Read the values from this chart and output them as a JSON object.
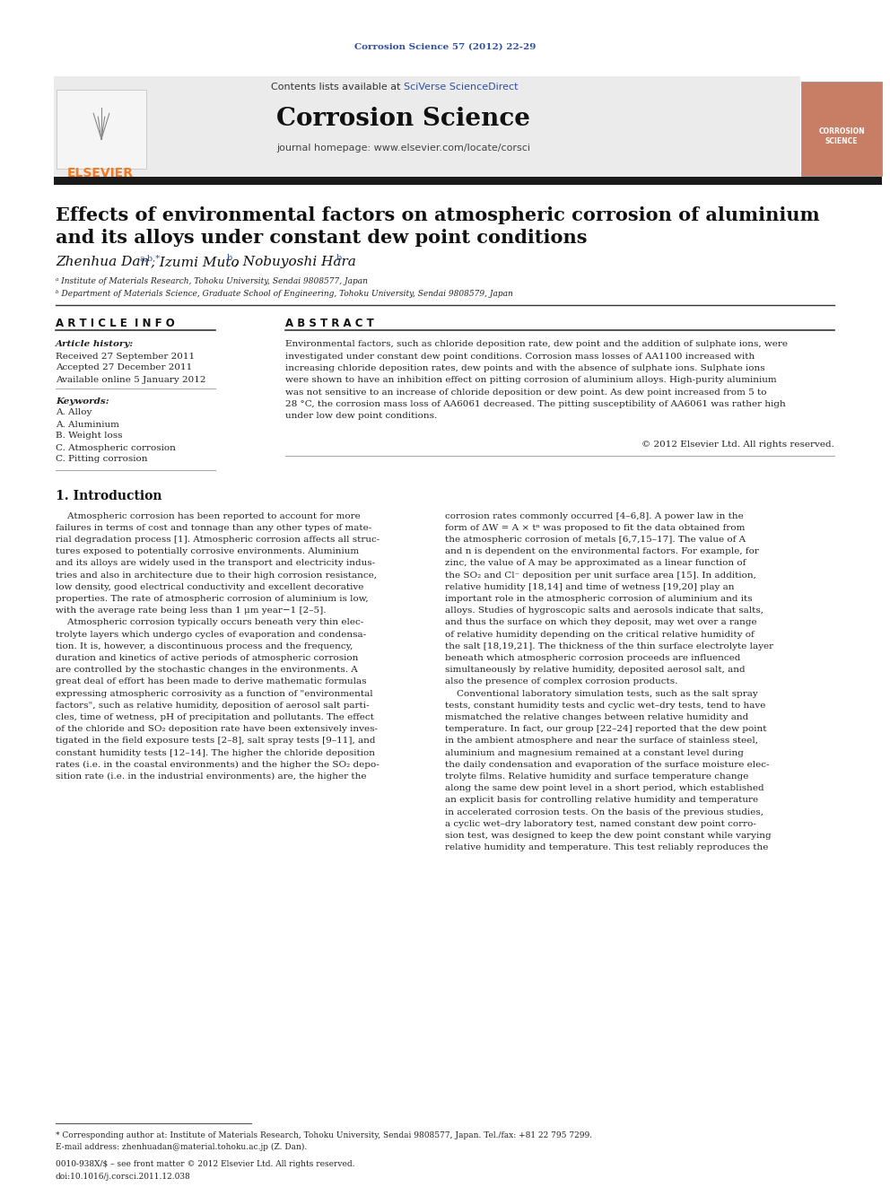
{
  "journal_ref": "Corrosion Science 57 (2012) 22-29",
  "header_text_1": "Contents lists available at ",
  "header_sciverse": "SciVerse ScienceDirect",
  "journal_name": "Corrosion Science",
  "journal_homepage": "journal homepage: www.elsevier.com/locate/corsci",
  "title_line1": "Effects of environmental factors on atmospheric corrosion of aluminium",
  "title_line2": "and its alloys under constant dew point conditions",
  "authors": "Zhenhua Dan",
  "author_super1": "a,b,*",
  "author2": ", Izumi Muto",
  "author_super2": "b",
  "author3": ", Nobuyoshi Hara",
  "author_super3": "b",
  "affil1": "ᵃ Institute of Materials Research, Tohoku University, Sendai 9808577, Japan",
  "affil2": "ᵇ Department of Materials Science, Graduate School of Engineering, Tohoku University, Sendai 9808579, Japan",
  "article_info_header": "A R T I C L E  I N F O",
  "abstract_header": "A B S T R A C T",
  "article_history_label": "Article history:",
  "received": "Received 27 September 2011",
  "accepted": "Accepted 27 December 2011",
  "available": "Available online 5 January 2012",
  "keywords_label": "Keywords:",
  "keyword1": "A. Alloy",
  "keyword2": "A. Aluminium",
  "keyword3": "B. Weight loss",
  "keyword4": "C. Atmospheric corrosion",
  "keyword5": "C. Pitting corrosion",
  "copyright": "© 2012 Elsevier Ltd. All rights reserved.",
  "section1_title": "1. Introduction",
  "footnote_star": "* Corresponding author at: Institute of Materials Research, Tohoku University, Sendai 9808577, Japan. Tel./fax: +81 22 795 7299.",
  "footnote_email": "E-mail address: zhenhuadan@material.tohoku.ac.jp (Z. Dan).",
  "footer_issn": "0010-938X/$ – see front matter © 2012 Elsevier Ltd. All rights reserved.",
  "footer_doi": "doi:10.1016/j.corsci.2011.12.038",
  "bg_color": "#ffffff",
  "black_bar_color": "#1a1a1a",
  "elsevier_orange": "#f47920",
  "link_color": "#2e4fa3"
}
